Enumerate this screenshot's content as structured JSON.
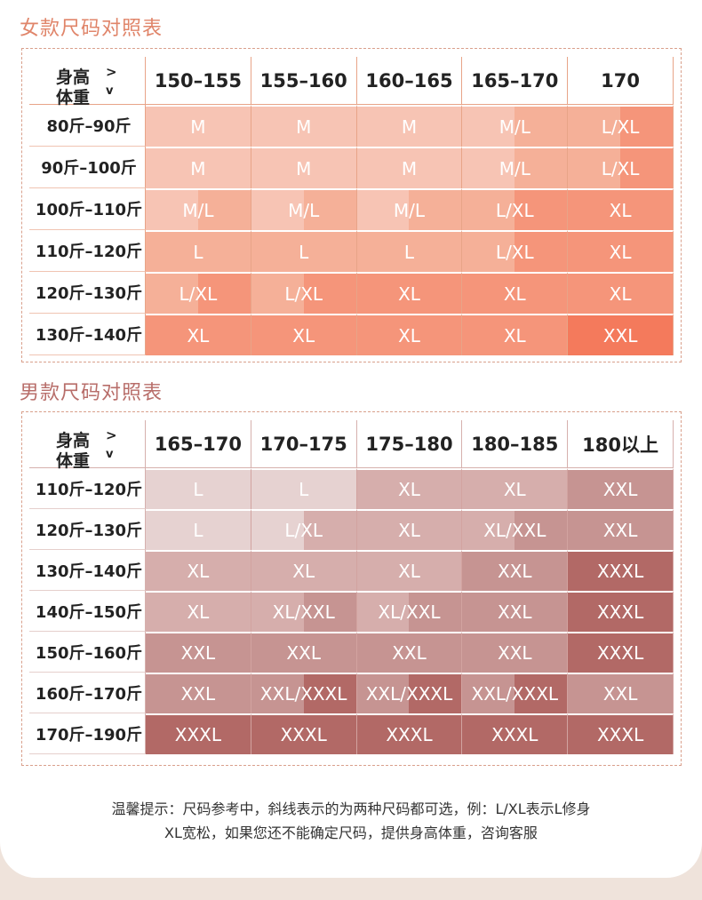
{
  "women": {
    "title": "女款尺码对照表",
    "corner": {
      "height": "身高",
      "weight": "体重",
      "arrow_h": ">",
      "arrow_w": "v"
    },
    "heights": [
      "150–155",
      "155–160",
      "160–165",
      "165–170",
      "170"
    ],
    "rows": [
      {
        "label": "80斤–90斤",
        "cells": [
          "M",
          "M",
          "M",
          "M/L",
          "L/XL"
        ]
      },
      {
        "label": "90斤–100斤",
        "cells": [
          "M",
          "M",
          "M",
          "M/L",
          "L/XL"
        ]
      },
      {
        "label": "100斤–110斤",
        "cells": [
          "M/L",
          "M/L",
          "M/L",
          "L/XL",
          "XL"
        ]
      },
      {
        "label": "110斤–120斤",
        "cells": [
          "L",
          "L",
          "L",
          "L/XL",
          "XL"
        ]
      },
      {
        "label": "120斤–130斤",
        "cells": [
          "L/XL",
          "L/XL",
          "XL",
          "XL",
          "XL"
        ]
      },
      {
        "label": "130斤–140斤",
        "cells": [
          "XL",
          "XL",
          "XL",
          "XL",
          "XXL"
        ]
      }
    ],
    "colors": {
      "title": "#e0856a",
      "M": "#f7c4b4",
      "L": "#f5b098",
      "XL": "#f5957a",
      "XXL": "#f47a5c"
    }
  },
  "men": {
    "title": "男款尺码对照表",
    "corner": {
      "height": "身高",
      "weight": "体重",
      "arrow_h": ">",
      "arrow_w": "v"
    },
    "heights": [
      "165–170",
      "170–175",
      "175–180",
      "180–185",
      "180以上"
    ],
    "rows": [
      {
        "label": "110斤–120斤",
        "cells": [
          "L",
          "L",
          "XL",
          "XL",
          "XXL"
        ]
      },
      {
        "label": "120斤–130斤",
        "cells": [
          "L",
          "L/XL",
          "XL",
          "XL/XXL",
          "XXL"
        ]
      },
      {
        "label": "130斤–140斤",
        "cells": [
          "XL",
          "XL",
          "XL",
          "XXL",
          "XXXL"
        ]
      },
      {
        "label": "140斤–150斤",
        "cells": [
          "XL",
          "XL/XXL",
          "XL/XXL",
          "XXL",
          "XXXL"
        ]
      },
      {
        "label": "150斤–160斤",
        "cells": [
          "XXL",
          "XXL",
          "XXL",
          "XXL",
          "XXXL"
        ]
      },
      {
        "label": "160斤–170斤",
        "cells": [
          "XXL",
          "XXL/XXXL",
          "XXL/XXXL",
          "XXL/XXXL",
          "XXL"
        ]
      },
      {
        "label": "170斤–190斤",
        "cells": [
          "XXXL",
          "XXXL",
          "XXXL",
          "XXXL",
          "XXXL"
        ]
      }
    ],
    "colors": {
      "title": "#b86e6a",
      "L": "#e6d2d1",
      "XL": "#d6aeac",
      "XXL": "#c69492",
      "XXXL": "#b26966"
    }
  },
  "tip": {
    "line1": "温馨提示：尺码参考中，斜线表示的为两种尺码都可选，例：L/XL表示L修身",
    "line2": "XL宽松，如果您还不能确定尺码，提供身高体重，咨询客服"
  }
}
